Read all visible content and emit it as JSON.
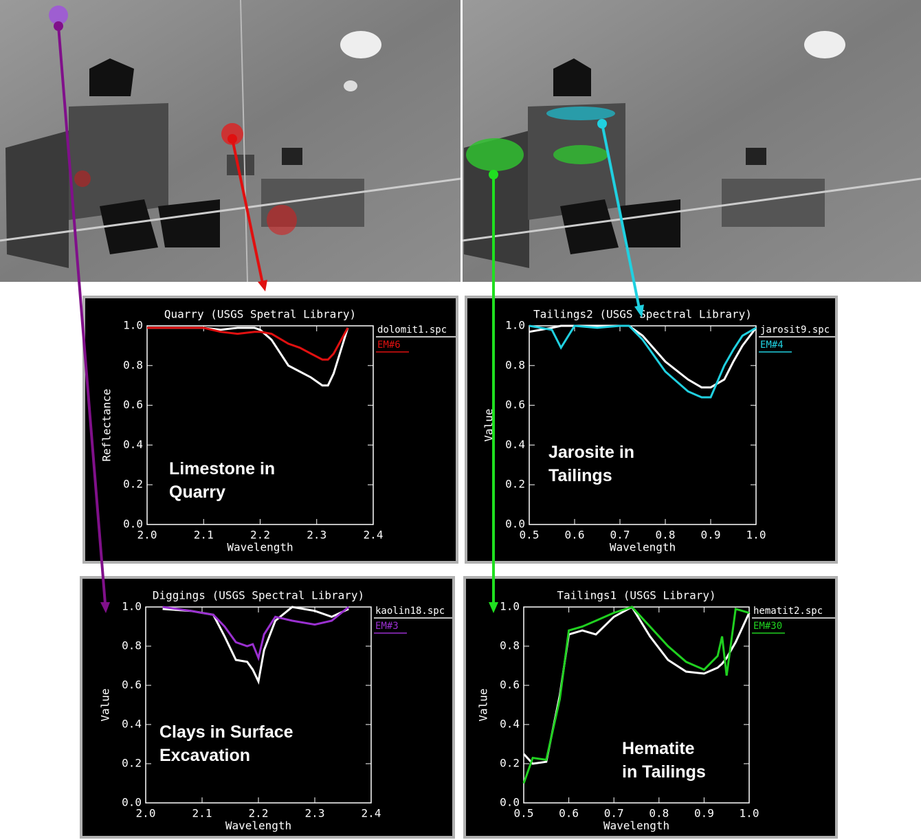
{
  "chart_data": [
    {
      "type": "line",
      "title": "Quarry (USGS Spetral Library)",
      "xlabel": "Wavelength",
      "ylabel": "Reflectance",
      "annotation": [
        "Limestone in",
        "Quarry"
      ],
      "xlim": [
        2.0,
        2.4
      ],
      "ylim": [
        0.0,
        1.0
      ],
      "xticks": [
        {
          "value": 2.0,
          "label": "2.0"
        },
        2.1,
        2.2,
        2.3,
        2.4
      ],
      "yticks": [
        {
          "value": 0.0,
          "label": "0.0"
        },
        0.2,
        0.4,
        0.6,
        0.8,
        {
          "value": 1.0,
          "label": "1.0"
        }
      ],
      "x": [
        2.0,
        2.05,
        2.1,
        2.13,
        2.16,
        2.19,
        2.2,
        2.22,
        2.25,
        2.27,
        2.29,
        2.31,
        2.32,
        2.33,
        2.355
      ],
      "series": [
        {
          "name": "dolomit1.spc",
          "color": "#ffffff",
          "values": [
            0.99,
            0.99,
            0.99,
            0.98,
            0.99,
            0.99,
            0.98,
            0.93,
            0.8,
            0.77,
            0.74,
            0.7,
            0.7,
            0.76,
            0.99
          ]
        },
        {
          "name": "EM#6",
          "color": "#e01010",
          "values": [
            0.99,
            0.99,
            0.99,
            0.97,
            0.96,
            0.97,
            0.97,
            0.96,
            0.91,
            0.89,
            0.86,
            0.83,
            0.83,
            0.86,
            0.99
          ]
        }
      ]
    },
    {
      "type": "line",
      "title": "Tailings2 (USGS Spectral Library)",
      "xlabel": "Wavelength",
      "ylabel": "Value",
      "annotation": [
        "Jarosite in",
        "Tailings"
      ],
      "xlim": [
        0.5,
        1.0
      ],
      "ylim": [
        0.0,
        1.0
      ],
      "xticks": [
        0.5,
        0.6,
        0.7,
        0.8,
        0.9,
        {
          "value": 1.0,
          "label": "1.0"
        }
      ],
      "yticks": [
        {
          "value": 0.0,
          "label": "0.0"
        },
        0.2,
        0.4,
        0.6,
        0.8,
        {
          "value": 1.0,
          "label": "1.0"
        }
      ],
      "x": [
        0.5,
        0.55,
        0.57,
        0.6,
        0.65,
        0.7,
        0.72,
        0.75,
        0.8,
        0.85,
        0.88,
        0.9,
        0.93,
        0.95,
        0.97,
        1.0
      ],
      "series": [
        {
          "name": "jarosit9.spc",
          "color": "#ffffff",
          "values": [
            0.97,
            0.99,
            1.0,
            1.0,
            1.0,
            1.0,
            1.0,
            0.95,
            0.82,
            0.73,
            0.69,
            0.69,
            0.73,
            0.82,
            0.9,
            0.99
          ]
        },
        {
          "name": "EM#4",
          "color": "#20d0e0",
          "values": [
            1.0,
            0.98,
            0.89,
            1.0,
            0.99,
            1.0,
            1.0,
            0.93,
            0.77,
            0.67,
            0.64,
            0.64,
            0.8,
            0.88,
            0.95,
            0.99
          ]
        }
      ]
    },
    {
      "type": "line",
      "title": "Diggings (USGS Spectral Library)",
      "xlabel": "Wavelength",
      "ylabel": "Value",
      "annotation": [
        "Clays in Surface",
        "Excavation"
      ],
      "xlim": [
        2.0,
        2.4
      ],
      "ylim": [
        0.0,
        1.0
      ],
      "xticks": [
        {
          "value": 2.0,
          "label": "2.0"
        },
        2.1,
        2.2,
        2.3,
        2.4
      ],
      "yticks": [
        {
          "value": 0.0,
          "label": "0.0"
        },
        0.2,
        0.4,
        0.6,
        0.8,
        {
          "value": 1.0,
          "label": "1.0"
        }
      ],
      "x": [
        2.03,
        2.08,
        2.12,
        2.14,
        2.16,
        2.18,
        2.19,
        2.2,
        2.21,
        2.23,
        2.26,
        2.3,
        2.33,
        2.36
      ],
      "series": [
        {
          "name": "kaolin18.spc",
          "color": "#ffffff",
          "values": [
            0.99,
            0.98,
            0.96,
            0.85,
            0.73,
            0.72,
            0.68,
            0.62,
            0.78,
            0.93,
            1.0,
            0.98,
            0.95,
            0.99
          ]
        },
        {
          "name": "EM#3",
          "color": "#9a30d0",
          "values": [
            1.0,
            0.98,
            0.96,
            0.9,
            0.82,
            0.8,
            0.81,
            0.74,
            0.86,
            0.95,
            0.93,
            0.91,
            0.93,
            1.0
          ]
        }
      ]
    },
    {
      "type": "line",
      "title": "Tailings1 (USGS Library)",
      "xlabel": "Wavelength",
      "ylabel": "Value",
      "annotation": [
        "Hematite",
        "in Tailings"
      ],
      "xlim": [
        0.5,
        1.0
      ],
      "ylim": [
        0.0,
        1.0
      ],
      "xticks": [
        0.5,
        0.6,
        0.7,
        0.8,
        0.9,
        {
          "value": 1.0,
          "label": "1.0"
        }
      ],
      "yticks": [
        {
          "value": 0.0,
          "label": "0.0"
        },
        0.2,
        0.4,
        0.6,
        0.8,
        {
          "value": 1.0,
          "label": "1.0"
        }
      ],
      "x": [
        0.5,
        0.52,
        0.55,
        0.58,
        0.6,
        0.63,
        0.66,
        0.7,
        0.74,
        0.78,
        0.82,
        0.86,
        0.9,
        0.93,
        0.94,
        0.95,
        0.97,
        1.0
      ],
      "series": [
        {
          "name": "hematit2.spc",
          "color": "#ffffff",
          "values": [
            0.25,
            0.2,
            0.21,
            0.55,
            0.86,
            0.88,
            0.86,
            0.95,
            1.0,
            0.85,
            0.73,
            0.67,
            0.66,
            0.69,
            0.71,
            0.74,
            0.82,
            0.97
          ]
        },
        {
          "name": "EM#30",
          "color": "#20d020",
          "values": [
            0.1,
            0.23,
            0.22,
            0.53,
            0.88,
            0.9,
            0.93,
            0.97,
            1.0,
            0.9,
            0.8,
            0.72,
            0.68,
            0.75,
            0.85,
            0.65,
            0.99,
            0.97
          ]
        }
      ]
    }
  ]
}
